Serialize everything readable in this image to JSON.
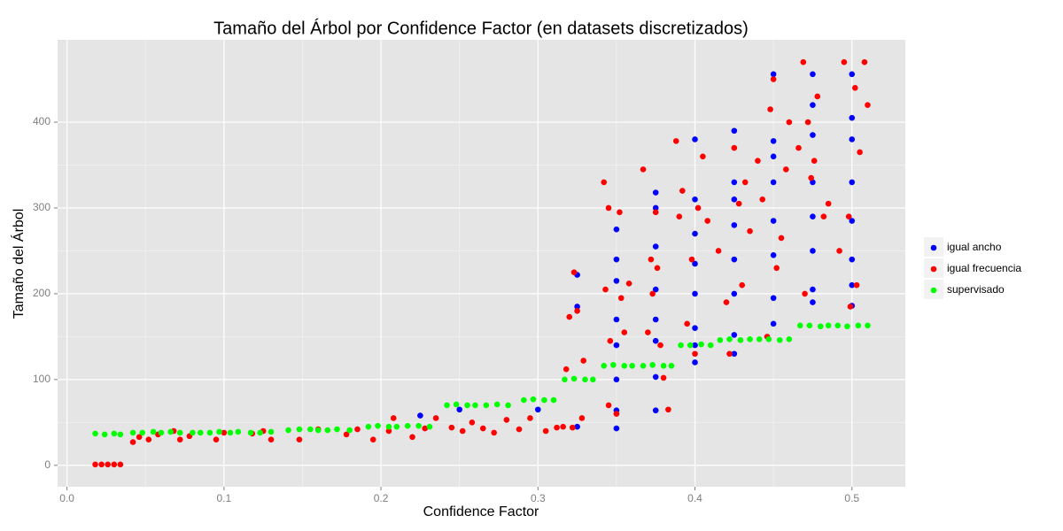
{
  "chart_data": {
    "type": "scatter",
    "title": "Tamaño del Árbol por Confidence Factor (en datasets discretizados)",
    "x_label": "Confidence Factor",
    "y_label": "Tamaño del Árbol",
    "xlim": [
      -0.006,
      0.534
    ],
    "ylim": [
      -25,
      496
    ],
    "xticks": [
      {
        "value": 0,
        "label": "0.0"
      },
      0.1,
      0.2,
      0.3,
      0.4,
      0.5
    ],
    "yticks": [
      0,
      100,
      200,
      300,
      400
    ],
    "grid": true,
    "legend": "right",
    "series": [
      {
        "name": "igual ancho",
        "color": "#0000ff",
        "x": [
          0.35,
          0.35,
          0.35,
          0.35,
          0.35,
          0.35,
          0.35,
          0.35,
          0.375,
          0.375,
          0.375,
          0.375,
          0.375,
          0.375,
          0.375,
          0.375,
          0.4,
          0.4,
          0.4,
          0.4,
          0.4,
          0.4,
          0.4,
          0.4,
          0.425,
          0.425,
          0.425,
          0.425,
          0.425,
          0.425,
          0.425,
          0.425,
          0.45,
          0.45,
          0.45,
          0.45,
          0.45,
          0.45,
          0.45,
          0.45,
          0.475,
          0.475,
          0.475,
          0.475,
          0.475,
          0.475,
          0.475,
          0.475,
          0.5,
          0.5,
          0.5,
          0.5,
          0.5,
          0.5,
          0.5,
          0.5,
          0.325,
          0.325,
          0.325,
          0.3,
          0.225,
          0.25
        ],
        "values": [
          43,
          64,
          100,
          140,
          170,
          215,
          240,
          275,
          64,
          103,
          145,
          170,
          205,
          255,
          300,
          318,
          120,
          140,
          160,
          200,
          235,
          270,
          310,
          380,
          130,
          152,
          200,
          240,
          280,
          310,
          330,
          390,
          165,
          195,
          245,
          285,
          330,
          360,
          378,
          456,
          190,
          205,
          250,
          290,
          330,
          385,
          420,
          456,
          186,
          210,
          240,
          285,
          330,
          380,
          405,
          456,
          185,
          222,
          45,
          65,
          58,
          65
        ]
      },
      {
        "name": "igual frecuencia",
        "color": "#ff0000",
        "x": [
          0.018,
          0.022,
          0.026,
          0.03,
          0.034,
          0.042,
          0.046,
          0.052,
          0.058,
          0.068,
          0.072,
          0.078,
          0.095,
          0.1,
          0.118,
          0.125,
          0.13,
          0.148,
          0.16,
          0.178,
          0.185,
          0.195,
          0.205,
          0.208,
          0.22,
          0.228,
          0.235,
          0.245,
          0.252,
          0.258,
          0.265,
          0.272,
          0.28,
          0.288,
          0.295,
          0.305,
          0.312,
          0.316,
          0.322,
          0.328,
          0.318,
          0.32,
          0.325,
          0.323,
          0.329,
          0.342,
          0.345,
          0.343,
          0.346,
          0.345,
          0.352,
          0.355,
          0.358,
          0.353,
          0.35,
          0.367,
          0.37,
          0.372,
          0.375,
          0.376,
          0.378,
          0.38,
          0.383,
          0.373,
          0.388,
          0.39,
          0.392,
          0.395,
          0.398,
          0.402,
          0.405,
          0.408,
          0.4,
          0.415,
          0.42,
          0.425,
          0.428,
          0.432,
          0.435,
          0.43,
          0.422,
          0.44,
          0.443,
          0.448,
          0.45,
          0.452,
          0.455,
          0.458,
          0.46,
          0.446,
          0.466,
          0.469,
          0.472,
          0.474,
          0.478,
          0.482,
          0.485,
          0.47,
          0.476,
          0.492,
          0.495,
          0.499,
          0.502,
          0.505,
          0.503,
          0.508,
          0.51,
          0.498
        ],
        "values": [
          1,
          1,
          1,
          1,
          1,
          27,
          33,
          30,
          36,
          40,
          30,
          34,
          30,
          38,
          37,
          40,
          30,
          30,
          42,
          36,
          42,
          30,
          40,
          55,
          33,
          43,
          55,
          44,
          40,
          50,
          43,
          38,
          53,
          42,
          55,
          40,
          44,
          45,
          44,
          55,
          112,
          173,
          180,
          225,
          122,
          330,
          300,
          205,
          145,
          70,
          295,
          155,
          212,
          195,
          60,
          345,
          155,
          240,
          295,
          230,
          140,
          102,
          65,
          200,
          378,
          290,
          320,
          165,
          240,
          300,
          360,
          285,
          130,
          250,
          190,
          370,
          305,
          330,
          273,
          210,
          130,
          355,
          310,
          415,
          450,
          230,
          265,
          345,
          400,
          150,
          370,
          470,
          400,
          335,
          430,
          290,
          305,
          200,
          355,
          250,
          470,
          185,
          440,
          365,
          210,
          470,
          420,
          290
        ]
      },
      {
        "name": "supervisado",
        "color": "#00ff00",
        "x": [
          0.018,
          0.024,
          0.03,
          0.034,
          0.042,
          0.048,
          0.055,
          0.06,
          0.066,
          0.072,
          0.08,
          0.085,
          0.091,
          0.097,
          0.104,
          0.109,
          0.117,
          0.123,
          0.13,
          0.141,
          0.148,
          0.155,
          0.16,
          0.166,
          0.172,
          0.18,
          0.192,
          0.198,
          0.205,
          0.21,
          0.217,
          0.224,
          0.231,
          0.242,
          0.248,
          0.255,
          0.26,
          0.267,
          0.274,
          0.281,
          0.291,
          0.297,
          0.304,
          0.31,
          0.317,
          0.323,
          0.33,
          0.335,
          0.342,
          0.348,
          0.355,
          0.36,
          0.367,
          0.373,
          0.38,
          0.385,
          0.391,
          0.397,
          0.404,
          0.41,
          0.416,
          0.422,
          0.429,
          0.435,
          0.441,
          0.447,
          0.454,
          0.46,
          0.467,
          0.473,
          0.48,
          0.485,
          0.491,
          0.497,
          0.504,
          0.51
        ],
        "values": [
          37,
          36,
          37,
          36,
          38,
          38,
          39,
          38,
          39,
          38,
          38,
          38,
          38,
          39,
          38,
          39,
          38,
          38,
          39,
          41,
          42,
          42,
          41,
          41,
          42,
          41,
          45,
          46,
          45,
          45,
          46,
          46,
          45,
          70,
          71,
          70,
          70,
          70,
          71,
          70,
          76,
          77,
          76,
          76,
          100,
          101,
          100,
          100,
          116,
          117,
          116,
          116,
          116,
          117,
          116,
          116,
          140,
          140,
          141,
          140,
          146,
          147,
          146,
          147,
          147,
          147,
          146,
          147,
          163,
          163,
          162,
          163,
          163,
          162,
          163,
          163
        ]
      }
    ]
  }
}
